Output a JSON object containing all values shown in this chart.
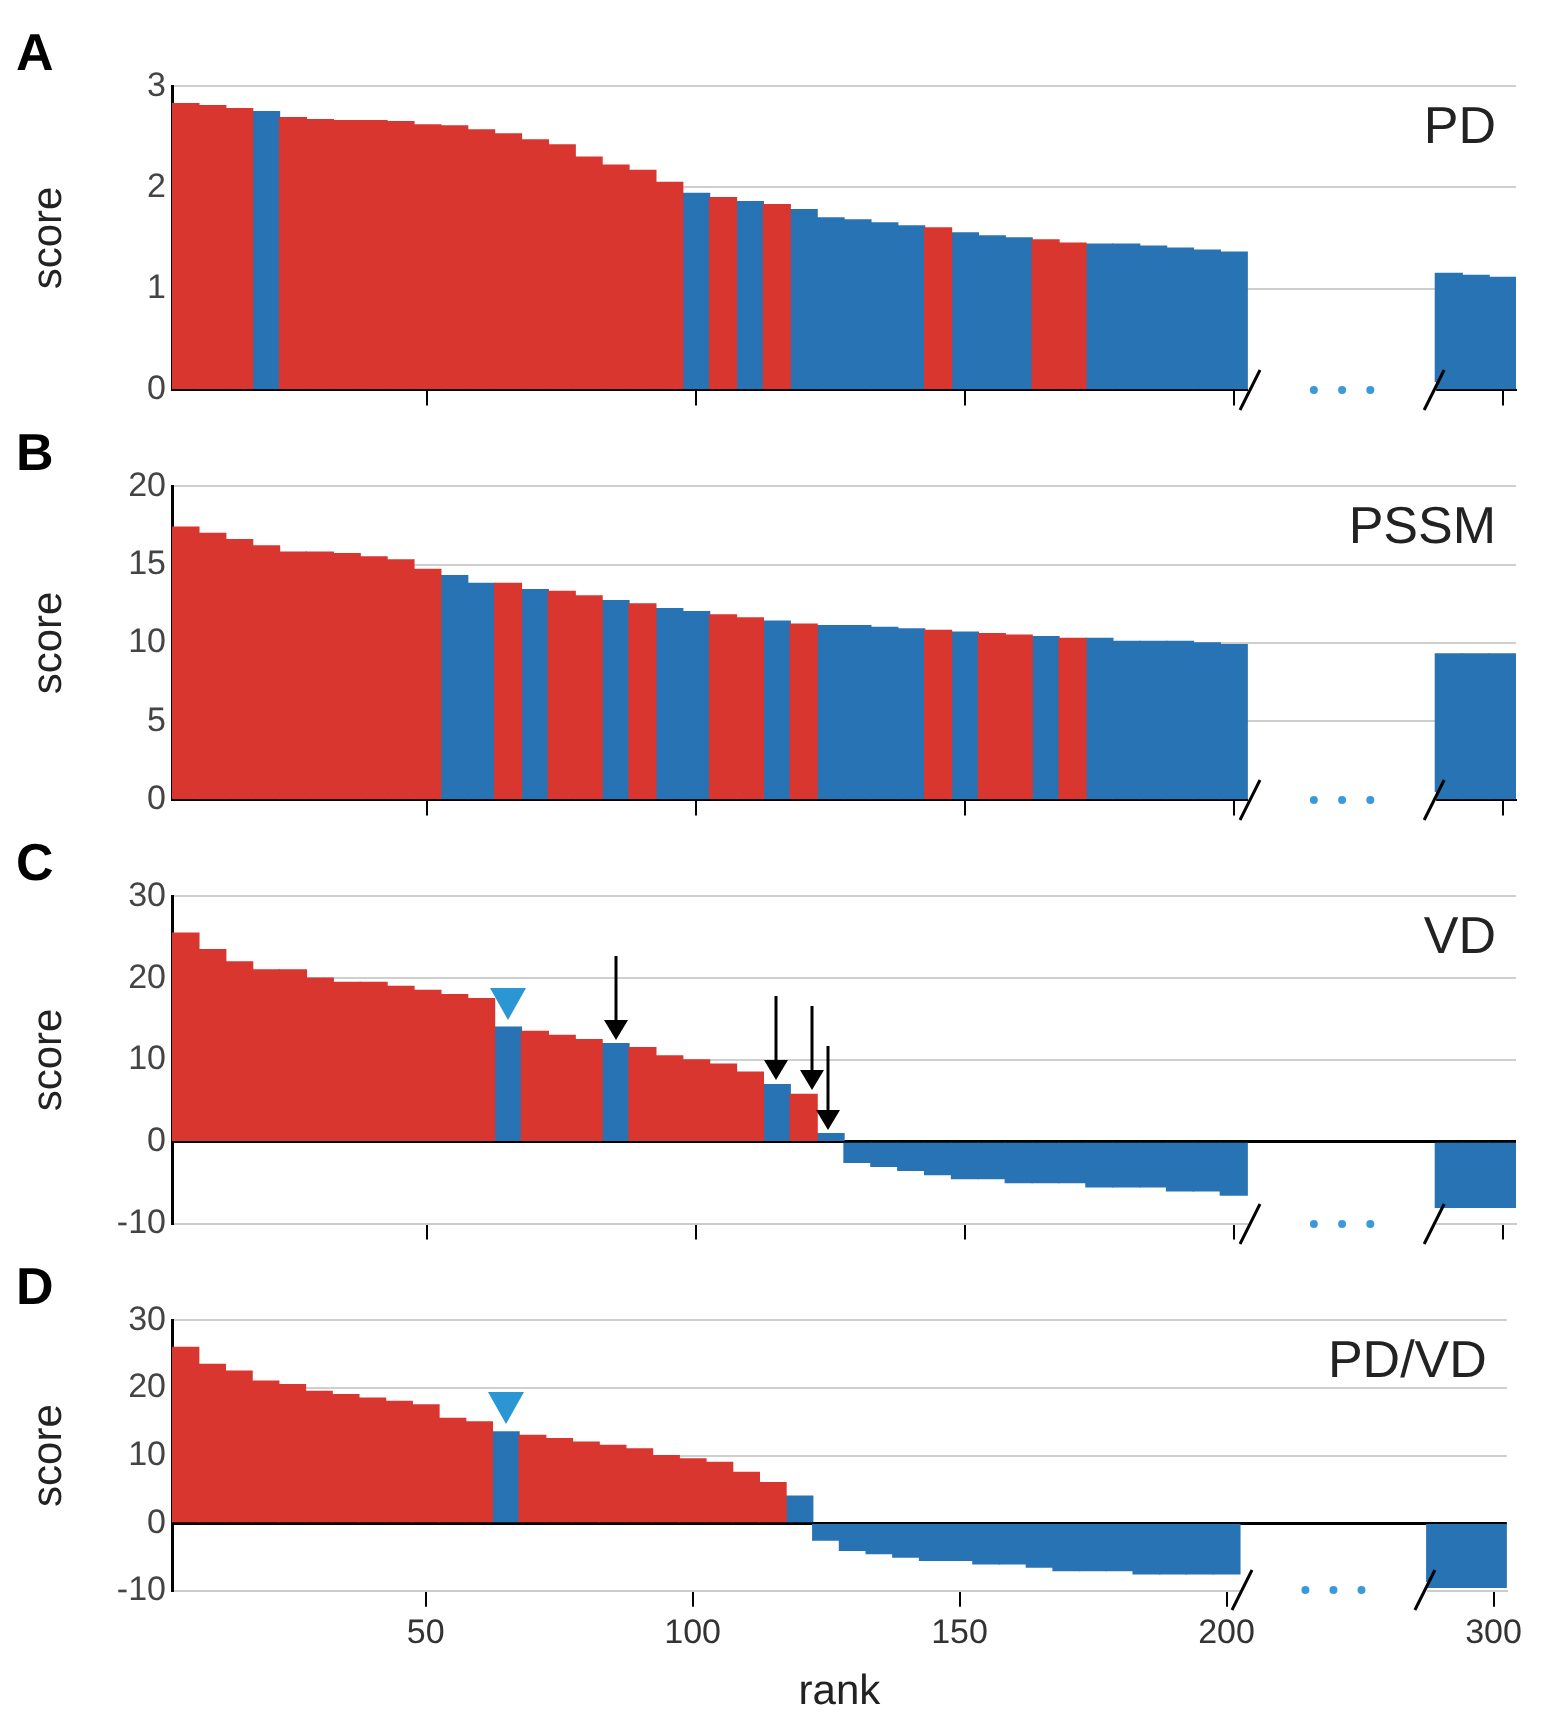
{
  "chart_data": [
    {
      "type": "bar",
      "title": "A",
      "ylabel": "score",
      "annotations": [
        "PD"
      ],
      "grid": "y",
      "tick_labels": "y",
      "ylim": [
        0,
        3
      ],
      "yticks": [
        0,
        1,
        2,
        3
      ],
      "categories": [
        null,
        null,
        null,
        null,
        null,
        null,
        null,
        null,
        null,
        "50",
        null,
        null,
        null,
        null,
        null,
        null,
        null,
        null,
        null,
        "100",
        null,
        null,
        null,
        null,
        null,
        null,
        null,
        null,
        null,
        "150",
        null,
        null,
        null,
        null,
        null,
        null,
        null,
        null,
        null,
        "200",
        null,
        null,
        null,
        null,
        null,
        null,
        null,
        null,
        null,
        "300"
      ],
      "series": [
        {
          "color": "#d93630",
          "values": [
            2.83,
            2.81,
            2.78,
            null,
            2.69,
            2.67,
            2.66,
            2.66,
            2.65,
            2.62,
            2.61,
            2.57,
            2.53,
            2.47,
            2.42,
            2.3,
            2.22,
            2.17,
            2.05,
            null,
            1.9,
            null,
            1.83,
            null,
            null,
            null,
            null,
            null,
            1.6,
            null,
            null,
            null,
            1.48,
            1.45,
            null,
            null,
            null,
            null,
            null,
            null,
            null,
            null,
            null,
            null,
            null,
            null,
            null,
            null,
            null,
            null
          ]
        },
        {
          "color": "#2873b3",
          "values": [
            null,
            null,
            null,
            2.75,
            null,
            null,
            null,
            null,
            null,
            null,
            null,
            null,
            null,
            null,
            null,
            null,
            null,
            null,
            null,
            1.94,
            null,
            1.86,
            null,
            1.78,
            1.7,
            1.68,
            1.65,
            1.62,
            null,
            1.55,
            1.52,
            1.5,
            null,
            null,
            1.44,
            1.44,
            1.42,
            1.4,
            1.38,
            1.36,
            null,
            null,
            null,
            null,
            null,
            null,
            null,
            1.15,
            1.13,
            1.11
          ]
        }
      ]
    },
    {
      "type": "bar",
      "title": "B",
      "ylabel": "score",
      "annotations": [
        "PSSM"
      ],
      "grid": "y",
      "tick_labels": "y",
      "ylim": [
        0,
        20
      ],
      "yticks": [
        0,
        5,
        10,
        15,
        20
      ],
      "categories": [
        null,
        null,
        null,
        null,
        null,
        null,
        null,
        null,
        null,
        "50",
        null,
        null,
        null,
        null,
        null,
        null,
        null,
        null,
        null,
        "100",
        null,
        null,
        null,
        null,
        null,
        null,
        null,
        null,
        null,
        "150",
        null,
        null,
        null,
        null,
        null,
        null,
        null,
        null,
        null,
        "200",
        null,
        null,
        null,
        null,
        null,
        null,
        null,
        null,
        null,
        "300"
      ],
      "series": [
        {
          "color": "#d93630",
          "values": [
            17.4,
            17.0,
            16.6,
            16.2,
            15.8,
            15.8,
            15.7,
            15.5,
            15.3,
            14.7,
            null,
            null,
            13.8,
            null,
            13.3,
            13.0,
            null,
            12.5,
            null,
            null,
            11.8,
            11.6,
            null,
            11.2,
            null,
            null,
            null,
            null,
            10.8,
            null,
            10.6,
            10.5,
            null,
            10.3,
            null,
            null,
            null,
            null,
            null,
            null,
            null,
            null,
            null,
            null,
            null,
            null,
            null,
            null,
            null,
            null
          ]
        },
        {
          "color": "#2873b3",
          "values": [
            null,
            null,
            null,
            null,
            null,
            null,
            null,
            null,
            null,
            null,
            14.3,
            13.8,
            null,
            13.4,
            null,
            null,
            12.7,
            null,
            12.2,
            12.0,
            null,
            null,
            11.4,
            null,
            11.1,
            11.1,
            11.0,
            10.9,
            null,
            10.7,
            null,
            null,
            10.4,
            null,
            10.3,
            10.1,
            10.1,
            10.1,
            10.0,
            9.9,
            null,
            null,
            null,
            null,
            null,
            null,
            null,
            9.3,
            9.3,
            9.3
          ]
        }
      ]
    },
    {
      "type": "bar",
      "title": "C",
      "ylabel": "score",
      "annotations": [
        "VD"
      ],
      "grid": "y",
      "tick_labels": "y",
      "ylim": [
        -10,
        30
      ],
      "yticks": [
        -10,
        0,
        10,
        20,
        30
      ],
      "categories": [
        null,
        null,
        null,
        null,
        null,
        null,
        null,
        null,
        null,
        "50",
        null,
        null,
        null,
        null,
        null,
        null,
        null,
        null,
        null,
        "100",
        null,
        null,
        null,
        null,
        null,
        null,
        null,
        null,
        null,
        "150",
        null,
        null,
        null,
        null,
        null,
        null,
        null,
        null,
        null,
        "200",
        null,
        null,
        null,
        null,
        null,
        null,
        null,
        null,
        null,
        "300"
      ],
      "series": [
        {
          "color": "#d93630",
          "values": [
            25.5,
            23.5,
            22,
            21,
            21,
            20,
            19.5,
            19.5,
            19,
            18.5,
            18,
            17.5,
            null,
            13.5,
            13,
            12.5,
            null,
            11.5,
            10.5,
            10,
            9.5,
            8.5,
            null,
            5.8,
            null,
            null,
            null,
            null,
            null,
            null,
            null,
            null,
            null,
            null,
            null,
            null,
            null,
            null,
            null,
            null,
            null,
            null,
            null,
            null,
            null,
            null,
            null,
            null,
            null,
            null
          ]
        },
        {
          "color": "#2873b3",
          "values": [
            null,
            null,
            null,
            null,
            null,
            null,
            null,
            null,
            null,
            null,
            null,
            null,
            14,
            null,
            null,
            null,
            12,
            null,
            null,
            null,
            null,
            null,
            7,
            null,
            1,
            -2.5,
            -3,
            -3.5,
            -4,
            -4.5,
            -4.5,
            -5,
            -5,
            -5,
            -5.5,
            -5.5,
            -5.5,
            -6,
            -6,
            -6.5,
            null,
            null,
            null,
            null,
            null,
            null,
            null,
            -8,
            -8,
            -8
          ]
        }
      ]
    },
    {
      "type": "bar",
      "title": "D",
      "ylabel": "score",
      "xlabel": "rank",
      "annotations": [
        "PD/VD"
      ],
      "grid": "y",
      "ylim": [
        -10,
        30
      ],
      "yticks": [
        -10,
        0,
        10,
        20,
        30
      ],
      "categories": [
        null,
        null,
        null,
        null,
        null,
        null,
        null,
        null,
        null,
        "50",
        null,
        null,
        null,
        null,
        null,
        null,
        null,
        null,
        null,
        "100",
        null,
        null,
        null,
        null,
        null,
        null,
        null,
        null,
        null,
        "150",
        null,
        null,
        null,
        null,
        null,
        null,
        null,
        null,
        null,
        "200",
        null,
        null,
        null,
        null,
        null,
        null,
        null,
        null,
        null,
        "300"
      ],
      "series": [
        {
          "color": "#d93630",
          "values": [
            26,
            23.5,
            22.5,
            21,
            20.5,
            19.5,
            19,
            18.5,
            18,
            17.5,
            15.5,
            15,
            null,
            13,
            12.5,
            12,
            11.5,
            11,
            10,
            9.5,
            9,
            7.5,
            6,
            null,
            null,
            null,
            null,
            null,
            null,
            null,
            null,
            null,
            null,
            null,
            null,
            null,
            null,
            null,
            null,
            null,
            null,
            null,
            null,
            null,
            null,
            null,
            null,
            null,
            null,
            null
          ]
        },
        {
          "color": "#2873b3",
          "values": [
            null,
            null,
            null,
            null,
            null,
            null,
            null,
            null,
            null,
            null,
            null,
            null,
            13.5,
            null,
            null,
            null,
            null,
            null,
            null,
            null,
            null,
            null,
            null,
            4,
            -2.5,
            -4,
            -4.5,
            -5,
            -5.5,
            -5.5,
            -6,
            -6,
            -6.5,
            -7,
            -7,
            -7,
            -7.5,
            -7.5,
            -7.5,
            -7.5,
            null,
            null,
            null,
            null,
            null,
            null,
            null,
            -9.5,
            -9.5,
            -9.5
          ]
        }
      ]
    }
  ]
}
